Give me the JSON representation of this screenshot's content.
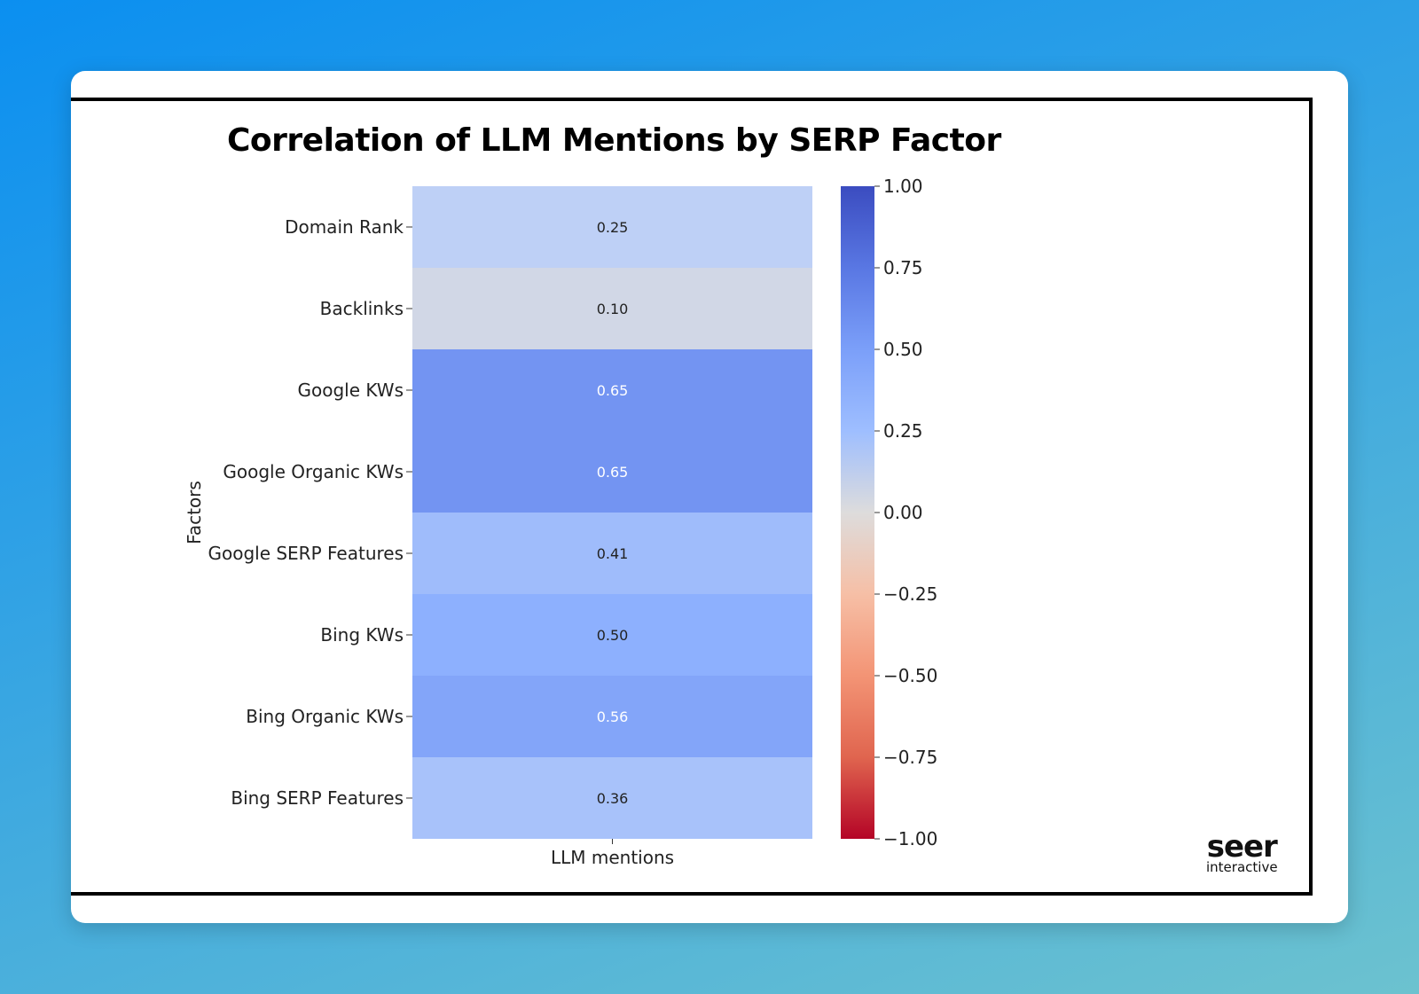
{
  "chart_data": {
    "type": "heatmap",
    "title": "Correlation of LLM Mentions by SERP Factor",
    "xlabel": "",
    "ylabel": "Factors",
    "columns": [
      "LLM mentions"
    ],
    "rows": [
      "Domain Rank",
      "Backlinks",
      "Google KWs",
      "Google Organic KWs",
      "Google SERP Features",
      "Bing KWs",
      "Bing Organic KWs",
      "Bing SERP Features"
    ],
    "values": [
      0.25,
      0.1,
      0.65,
      0.65,
      0.41,
      0.5,
      0.56,
      0.36
    ],
    "value_labels": [
      "0.25",
      "0.10",
      "0.65",
      "0.65",
      "0.41",
      "0.50",
      "0.56",
      "0.36"
    ],
    "colormap": "coolwarm",
    "vmin": -1.0,
    "vmax": 1.0,
    "colorbar_ticks": [
      1.0,
      0.75,
      0.5,
      0.25,
      0.0,
      -0.25,
      -0.5,
      -0.75,
      -1.0
    ],
    "colorbar_tick_labels": [
      "1.00",
      "0.75",
      "0.50",
      "0.25",
      "0.00",
      "−0.25",
      "−0.50",
      "−0.75",
      "−1.00"
    ]
  },
  "branding": {
    "logo_main": "seer",
    "logo_sub": "interactive"
  }
}
